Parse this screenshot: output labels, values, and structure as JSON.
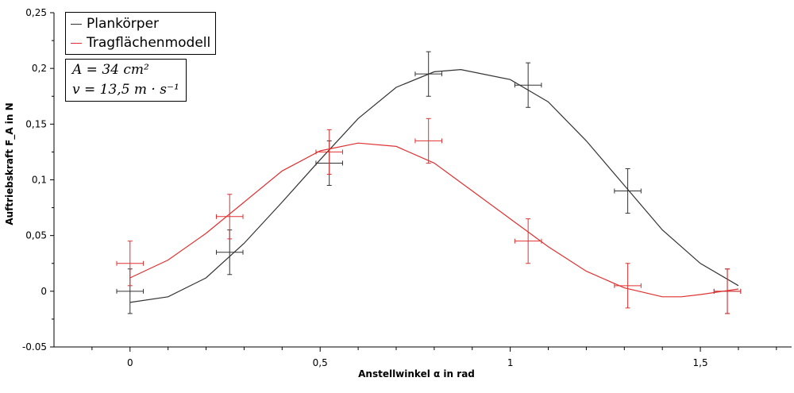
{
  "chart_data": {
    "type": "scatter",
    "xlabel": "Anstellwinkel α in rad",
    "ylabel": "Auftriebskraft F_A in N",
    "xlim": [
      -0.2,
      1.74
    ],
    "ylim": [
      -0.05,
      0.25
    ],
    "x_ticks": [
      {
        "v": 0,
        "label": "0"
      },
      {
        "v": 0.5,
        "label": "0,5"
      },
      {
        "v": 1,
        "label": "1"
      },
      {
        "v": 1.5,
        "label": "1,5"
      }
    ],
    "y_ticks": [
      {
        "v": 0.25,
        "label": "0,25"
      },
      {
        "v": 0.2,
        "label": "0,2"
      },
      {
        "v": 0.15,
        "label": "0,15"
      },
      {
        "v": 0.1,
        "label": "0,1"
      },
      {
        "v": 0.05,
        "label": "0,05"
      },
      {
        "v": 0,
        "label": "0"
      },
      {
        "v": -0.05,
        "label": "-0.05"
      }
    ],
    "legend": "top-left",
    "annotation": [
      "A = 34 cm²",
      "v = 13,5 m · s⁻¹"
    ],
    "series": [
      {
        "name": "Plankörper",
        "color": "#333333",
        "x": [
          0,
          0.262,
          0.524,
          0.785,
          1.047,
          1.309,
          1.571
        ],
        "y": [
          0,
          0.035,
          0.115,
          0.195,
          0.185,
          0.09,
          0
        ],
        "x_err": 0.035,
        "y_err": 0.02,
        "fit": [
          [
            0,
            -0.01
          ],
          [
            0.1,
            -0.005
          ],
          [
            0.2,
            0.012
          ],
          [
            0.3,
            0.043
          ],
          [
            0.4,
            0.08
          ],
          [
            0.5,
            0.118
          ],
          [
            0.6,
            0.155
          ],
          [
            0.7,
            0.183
          ],
          [
            0.8,
            0.197
          ],
          [
            0.87,
            0.199
          ],
          [
            1.0,
            0.19
          ],
          [
            1.1,
            0.17
          ],
          [
            1.2,
            0.135
          ],
          [
            1.3,
            0.095
          ],
          [
            1.4,
            0.055
          ],
          [
            1.5,
            0.025
          ],
          [
            1.6,
            0.005
          ]
        ]
      },
      {
        "name": "Tragflächenmodell",
        "color": "#e03030",
        "x": [
          0,
          0.262,
          0.524,
          0.785,
          1.047,
          1.309,
          1.571
        ],
        "y": [
          0.025,
          0.067,
          0.125,
          0.135,
          0.045,
          0.005,
          0
        ],
        "x_err": 0.035,
        "y_err": 0.02,
        "fit": [
          [
            0,
            0.012
          ],
          [
            0.1,
            0.028
          ],
          [
            0.2,
            0.052
          ],
          [
            0.3,
            0.08
          ],
          [
            0.4,
            0.108
          ],
          [
            0.5,
            0.126
          ],
          [
            0.6,
            0.133
          ],
          [
            0.7,
            0.13
          ],
          [
            0.8,
            0.115
          ],
          [
            0.9,
            0.09
          ],
          [
            1.0,
            0.065
          ],
          [
            1.1,
            0.04
          ],
          [
            1.2,
            0.018
          ],
          [
            1.3,
            0.003
          ],
          [
            1.4,
            -0.005
          ],
          [
            1.45,
            -0.005
          ],
          [
            1.5,
            -0.003
          ],
          [
            1.6,
            0.002
          ]
        ]
      }
    ]
  }
}
